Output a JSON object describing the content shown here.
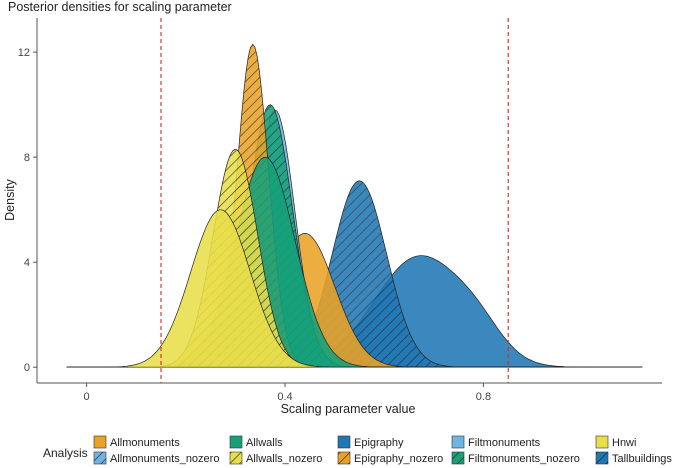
{
  "chart_data": {
    "type": "area",
    "title": "Posterior densities for scaling parameter",
    "xlabel": "Scaling parameter value",
    "ylabel": "Density",
    "xlim": [
      -0.1,
      1.16
    ],
    "ylim": [
      -0.6,
      13.3
    ],
    "x_ticks": [
      0,
      0.4,
      0.8
    ],
    "y_ticks": [
      0,
      4,
      8,
      12
    ],
    "reference_lines": [
      0.15,
      0.85
    ],
    "reference_line_color": "#d62728",
    "legend_title": "Analysis",
    "legend_position": "bottom",
    "series": [
      {
        "name": "Allmonuments",
        "color": "#e9a227",
        "hatched": false,
        "components": [
          {
            "mu": 0.44,
            "sd": 0.06,
            "peak": 5.1
          }
        ]
      },
      {
        "name": "Allmonuments_nozero",
        "color": "#6fb5e0",
        "hatched": true,
        "components": [
          {
            "mu": 0.33,
            "sd": 0.05,
            "peak": 5.0
          }
        ]
      },
      {
        "name": "Allwalls",
        "color": "#16a07a",
        "hatched": false,
        "components": [
          {
            "mu": 0.36,
            "sd": 0.06,
            "peak": 8.0
          }
        ]
      },
      {
        "name": "Allwalls_nozero",
        "color": "#e8de4a",
        "hatched": true,
        "components": [
          {
            "mu": 0.3,
            "sd": 0.045,
            "peak": 8.3
          }
        ]
      },
      {
        "name": "Epigraphy",
        "color": "#1f77b4",
        "hatched": false,
        "components": [
          {
            "mu": 0.67,
            "sd": 0.09,
            "peak": 4.2
          },
          {
            "mu": 0.79,
            "sd": 0.05,
            "peak": 0.8
          }
        ]
      },
      {
        "name": "Epigraphy_nozero",
        "color": "#e9a227",
        "hatched": true,
        "components": [
          {
            "mu": 0.335,
            "sd": 0.032,
            "peak": 12.3
          }
        ]
      },
      {
        "name": "Filtmonuments",
        "color": "#6fb5e0",
        "hatched": false,
        "components": [
          {
            "mu": 0.38,
            "sd": 0.04,
            "peak": 9.8
          }
        ]
      },
      {
        "name": "Filtmonuments_nozero",
        "color": "#16a07a",
        "hatched": true,
        "components": [
          {
            "mu": 0.37,
            "sd": 0.045,
            "peak": 10.0
          }
        ]
      },
      {
        "name": "Hnwi",
        "color": "#e8de4a",
        "hatched": false,
        "components": [
          {
            "mu": 0.27,
            "sd": 0.06,
            "peak": 6.0
          }
        ]
      },
      {
        "name": "Tallbuildings",
        "color": "#1f77b4",
        "hatched": true,
        "components": [
          {
            "mu": 0.55,
            "sd": 0.055,
            "peak": 7.1
          }
        ]
      }
    ],
    "draw_order": [
      "Epigraphy",
      "Tallbuildings",
      "Allmonuments",
      "Filtmonuments",
      "Allmonuments_nozero",
      "Filtmonuments_nozero",
      "Epigraphy_nozero",
      "Allwalls",
      "Allwalls_nozero",
      "Hnwi"
    ],
    "x_domain": [
      -0.04,
      1.12
    ]
  }
}
